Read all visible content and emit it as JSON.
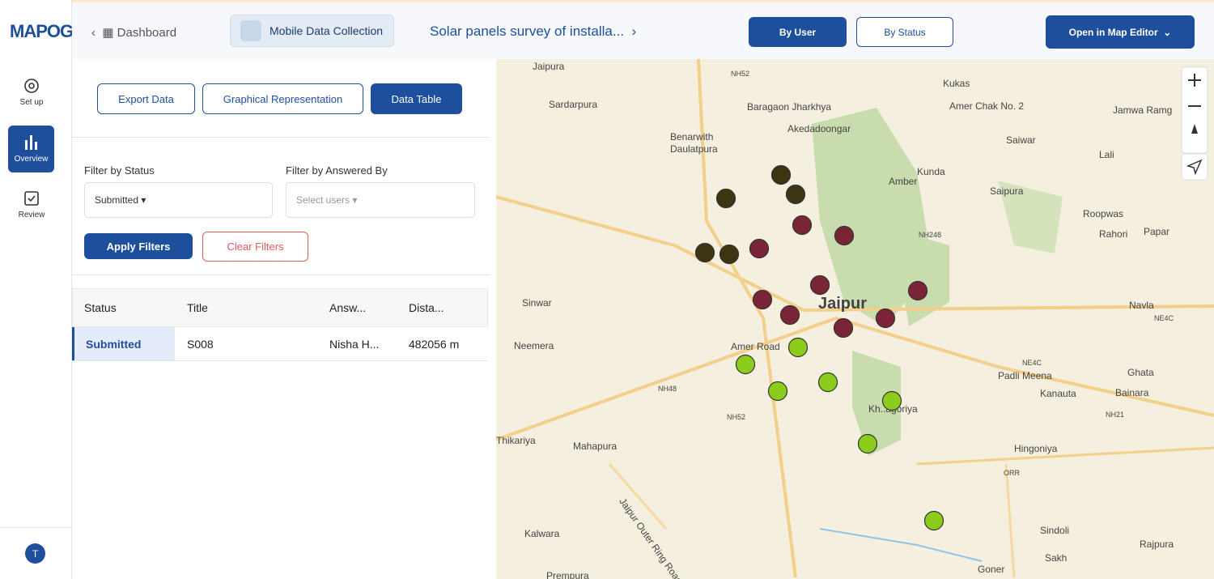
{
  "header": {
    "logo": "MAPOG",
    "breadcrumb": "Dashboard",
    "module": "Mobile Data Collection",
    "survey_title": "Solar panels survey of installa...",
    "buttons": [
      "By User",
      "By Status",
      "Open in Map Editor"
    ]
  },
  "sidebar": {
    "items": [
      "Set up",
      "Overview",
      "Review"
    ],
    "avatar": "T"
  },
  "toolbar": [
    "Export Data",
    "Graphical Representation",
    "Data Table"
  ],
  "filters": {
    "status_label": "Filter by Status",
    "status_value": "Submitted",
    "user_label": "Filter by Answered By",
    "user_placeholder": "Select users",
    "apply": "Apply Filters",
    "clear": "Clear Filters"
  },
  "table": {
    "columns": [
      "Status",
      "Title",
      "Answ...",
      "Dista..."
    ],
    "rows": [
      [
        "Submitted",
        "S008",
        "Nisha H...",
        "482056 m"
      ]
    ]
  },
  "map": {
    "labels": [
      "Jaipura",
      "NH52",
      "Kukas",
      "Sardarpura",
      "Baragaon Jharkhya",
      "Amer Chak No. 2",
      "Jamwa Ramg",
      "Akedadoongar",
      "Benarwith",
      "Daulatpura",
      "Saiwar",
      "Lali",
      "Amber",
      "Kunda",
      "Saipura",
      "Roopwas",
      "Rahori",
      "Papar",
      "NH248",
      "Sinwar",
      "Jaipur",
      "Navla",
      "NE4C",
      "Neemera",
      "Amer Road",
      "NE4C",
      "Padli Meena",
      "Ghata",
      "NH48",
      "Kanauta",
      "Bainara",
      "NH52",
      "NH21",
      "Thikariya",
      "Mahapura",
      "Hingoniya",
      "ORR",
      "Kalwara",
      "Sindoli",
      "Rajpura",
      "Prempura",
      "Sakh",
      "Goner",
      "Jaipur Outer Ring Road",
      "Kh..agoriya"
    ]
  }
}
